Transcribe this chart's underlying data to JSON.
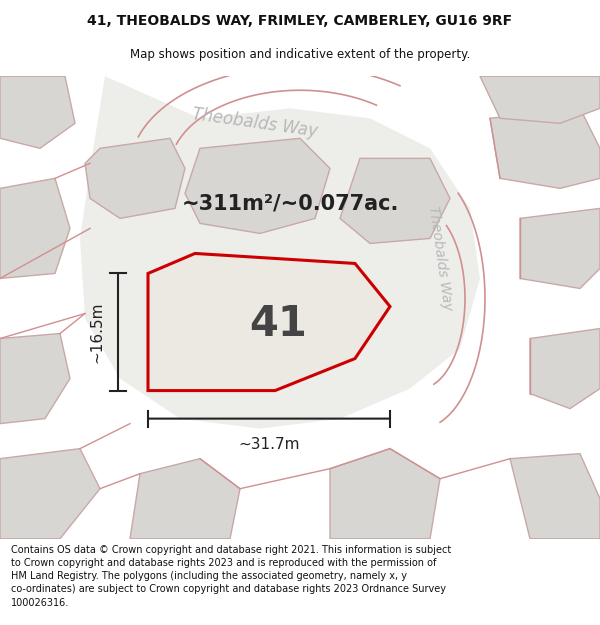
{
  "title_line1": "41, THEOBALDS WAY, FRIMLEY, CAMBERLEY, GU16 9RF",
  "title_line2": "Map shows position and indicative extent of the property.",
  "footer_lines": [
    "Contains OS data © Crown copyright and database right 2021. This information is subject",
    "to Crown copyright and database rights 2023 and is reproduced with the permission of",
    "HM Land Registry. The polygons (including the associated geometry, namely x, y",
    "co-ordinates) are subject to Crown copyright and database rights 2023 Ordnance Survey",
    "100026316."
  ],
  "map_bg_color": "#f5f4f2",
  "road_fill": "#f0eeeb",
  "neighbor_fill": "#d8d6d2",
  "neighbor_edge": "#c8a8a8",
  "parcel_fill": "#e8e4de",
  "parcel_edge_color": "#cc0000",
  "road_label_color": "#aaaaaa",
  "road_label": "Theobalds Way",
  "property_number": "41",
  "area_text": "~311m²/~0.077ac.",
  "dim_width": "~31.7m",
  "dim_height": "~16.5m",
  "title_fontsize": 10,
  "subtitle_fontsize": 8.5,
  "footer_fontsize": 7.0
}
